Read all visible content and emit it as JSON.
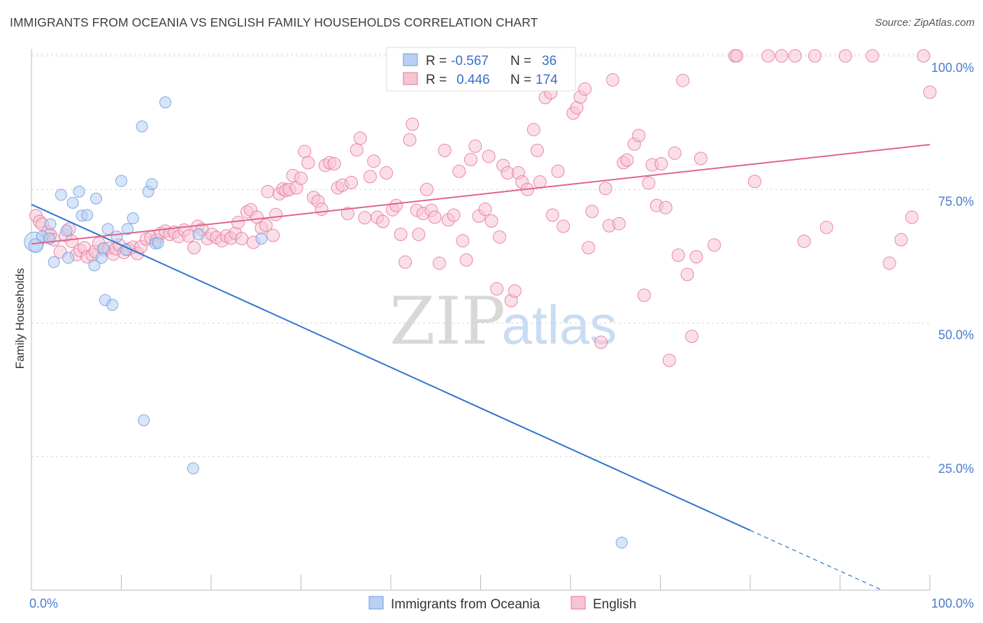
{
  "chart_data": {
    "type": "scatter",
    "title": "IMMIGRANTS FROM OCEANIA VS ENGLISH FAMILY HOUSEHOLDS CORRELATION CHART",
    "source": "Source: ZipAtlas.com",
    "xlabel": "",
    "ylabel": "Family Households",
    "xlim": [
      0,
      100
    ],
    "ylim": [
      0,
      102
    ],
    "x_tick_labels": [
      "0.0%",
      "100.0%"
    ],
    "y_ticks": [
      25,
      50,
      75,
      100
    ],
    "y_tick_labels": [
      "25.0%",
      "50.0%",
      "75.0%",
      "100.0%"
    ],
    "watermark": "ZIPatlas",
    "legend": {
      "r_label": "R =",
      "n_label": "N =",
      "entries": [
        {
          "r": "-0.567",
          "n": "36"
        },
        {
          "r": "0.446",
          "n": "174"
        }
      ]
    },
    "series": [
      {
        "name": "Immigrants from Oceania",
        "color": "#6a9de0",
        "fill": "#b8d0f3",
        "trend": {
          "x0": 0,
          "y0": 72.2,
          "x1": 80,
          "y1": 11.2,
          "dash_to_x": 94.5
        },
        "points": [
          [
            0.3,
            65.2,
            14
          ],
          [
            0.5,
            64.5,
            10
          ],
          [
            1.2,
            66.2,
            8
          ],
          [
            2.1,
            68.5,
            8
          ],
          [
            2.5,
            61.4,
            8
          ],
          [
            3.3,
            74.0,
            8
          ],
          [
            3.9,
            67.3,
            8
          ],
          [
            4.1,
            62.2,
            8
          ],
          [
            4.6,
            72.5,
            8
          ],
          [
            5.3,
            74.6,
            8
          ],
          [
            5.6,
            70.1,
            8
          ],
          [
            6.2,
            70.2,
            8
          ],
          [
            7.0,
            60.8,
            8
          ],
          [
            7.2,
            73.3,
            8
          ],
          [
            7.8,
            62.2,
            8
          ],
          [
            8.2,
            54.3,
            8
          ],
          [
            8.5,
            67.6,
            8
          ],
          [
            9.0,
            53.4,
            8
          ],
          [
            9.5,
            66.2,
            8
          ],
          [
            10.0,
            76.6,
            8
          ],
          [
            10.5,
            63.7,
            8
          ],
          [
            10.7,
            67.6,
            8
          ],
          [
            11.3,
            69.6,
            8
          ],
          [
            12.3,
            86.8,
            8
          ],
          [
            12.5,
            31.8,
            8
          ],
          [
            13.0,
            74.6,
            8
          ],
          [
            13.4,
            76.0,
            8
          ],
          [
            13.8,
            64.9,
            8
          ],
          [
            14.1,
            65.0,
            8
          ],
          [
            14.9,
            91.3,
            8
          ],
          [
            18.0,
            22.8,
            8
          ],
          [
            18.6,
            66.6,
            8
          ],
          [
            25.6,
            65.8,
            8
          ],
          [
            65.7,
            8.9,
            8
          ],
          [
            2.0,
            65.8,
            8
          ],
          [
            8.0,
            64.0,
            8
          ]
        ]
      },
      {
        "name": "English",
        "color": "#e5749c",
        "fill": "#f7c4d4",
        "trend": {
          "x0": 0,
          "y0": 64.8,
          "x1": 100,
          "y1": 83.4
        },
        "points": [
          [
            0.5,
            70.1,
            9
          ],
          [
            0.9,
            69.0,
            9
          ],
          [
            1.2,
            68.5,
            9
          ],
          [
            1.8,
            67.0,
            9
          ],
          [
            2.1,
            66.5,
            9
          ],
          [
            2.5,
            65.6,
            9
          ],
          [
            3.2,
            63.3,
            9
          ],
          [
            3.8,
            66.4,
            9
          ],
          [
            4.2,
            67.6,
            9
          ],
          [
            4.5,
            65.3,
            9
          ],
          [
            5.0,
            62.8,
            9
          ],
          [
            5.4,
            63.6,
            9
          ],
          [
            5.9,
            64.1,
            9
          ],
          [
            6.2,
            62.4,
            9
          ],
          [
            6.8,
            62.7,
            9
          ],
          [
            7.1,
            63.4,
            9
          ],
          [
            7.5,
            64.9,
            9
          ],
          [
            8.1,
            63.7,
            9
          ],
          [
            8.6,
            64.0,
            9
          ],
          [
            9.1,
            62.9,
            9
          ],
          [
            9.4,
            63.9,
            9
          ],
          [
            9.8,
            64.6,
            9
          ],
          [
            10.3,
            63.2,
            9
          ],
          [
            10.8,
            63.8,
            9
          ],
          [
            11.3,
            64.2,
            9
          ],
          [
            11.8,
            63.0,
            9
          ],
          [
            12.2,
            64.3,
            9
          ],
          [
            12.8,
            65.7,
            9
          ],
          [
            13.3,
            66.0,
            9
          ],
          [
            13.9,
            65.5,
            9
          ],
          [
            14.4,
            66.8,
            9
          ],
          [
            14.9,
            67.2,
            9
          ],
          [
            15.4,
            66.6,
            9
          ],
          [
            15.9,
            67.0,
            9
          ],
          [
            16.4,
            66.2,
            9
          ],
          [
            17.0,
            67.4,
            9
          ],
          [
            17.5,
            66.3,
            9
          ],
          [
            18.1,
            64.1,
            9
          ],
          [
            18.5,
            68.1,
            9
          ],
          [
            19.0,
            67.5,
            9
          ],
          [
            19.6,
            65.8,
            9
          ],
          [
            20.1,
            66.6,
            9
          ],
          [
            20.6,
            66.0,
            9
          ],
          [
            21.2,
            65.4,
            9
          ],
          [
            21.7,
            66.3,
            9
          ],
          [
            22.2,
            65.9,
            9
          ],
          [
            22.7,
            66.8,
            9
          ],
          [
            23.0,
            68.8,
            9
          ],
          [
            23.4,
            65.8,
            9
          ],
          [
            24.0,
            70.8,
            9
          ],
          [
            24.4,
            71.2,
            9
          ],
          [
            24.7,
            65.1,
            9
          ],
          [
            25.1,
            69.8,
            9
          ],
          [
            25.6,
            67.8,
            9
          ],
          [
            26.1,
            68.3,
            9
          ],
          [
            26.3,
            74.6,
            9
          ],
          [
            26.9,
            66.4,
            9
          ],
          [
            27.2,
            70.3,
            9
          ],
          [
            27.6,
            74.2,
            9
          ],
          [
            28.0,
            75.1,
            9
          ],
          [
            28.3,
            74.8,
            9
          ],
          [
            28.7,
            75.0,
            9
          ],
          [
            29.1,
            77.6,
            9
          ],
          [
            29.5,
            75.3,
            9
          ],
          [
            30.0,
            77.1,
            9
          ],
          [
            30.4,
            82.1,
            9
          ],
          [
            30.8,
            80.0,
            9
          ],
          [
            31.4,
            73.5,
            9
          ],
          [
            31.9,
            72.8,
            9
          ],
          [
            32.3,
            71.3,
            9
          ],
          [
            32.7,
            79.5,
            9
          ],
          [
            33.2,
            80.0,
            9
          ],
          [
            33.7,
            79.8,
            9
          ],
          [
            34.1,
            75.3,
            9
          ],
          [
            34.6,
            75.8,
            9
          ],
          [
            35.2,
            70.5,
            9
          ],
          [
            35.6,
            76.3,
            9
          ],
          [
            36.2,
            82.4,
            9
          ],
          [
            36.6,
            84.6,
            9
          ],
          [
            37.1,
            69.7,
            9
          ],
          [
            37.7,
            77.4,
            9
          ],
          [
            38.1,
            80.3,
            9
          ],
          [
            38.5,
            69.8,
            9
          ],
          [
            39.1,
            69.0,
            9
          ],
          [
            39.5,
            78.1,
            9
          ],
          [
            40.2,
            71.2,
            9
          ],
          [
            40.6,
            72.0,
            9
          ],
          [
            41.1,
            66.6,
            9
          ],
          [
            41.6,
            61.4,
            9
          ],
          [
            42.1,
            84.3,
            9
          ],
          [
            42.4,
            87.2,
            9
          ],
          [
            42.9,
            71.1,
            9
          ],
          [
            43.1,
            66.6,
            9
          ],
          [
            43.6,
            70.5,
            9
          ],
          [
            44.0,
            75.0,
            9
          ],
          [
            44.5,
            71.1,
            9
          ],
          [
            44.9,
            69.8,
            9
          ],
          [
            45.4,
            61.2,
            9
          ],
          [
            46.0,
            82.3,
            9
          ],
          [
            46.4,
            69.3,
            9
          ],
          [
            47.0,
            70.2,
            9
          ],
          [
            47.6,
            78.4,
            9
          ],
          [
            48.0,
            65.4,
            9
          ],
          [
            48.4,
            61.8,
            9
          ],
          [
            48.9,
            80.6,
            9
          ],
          [
            49.4,
            83.1,
            9
          ],
          [
            49.8,
            70.0,
            9
          ],
          [
            50.5,
            71.3,
            9
          ],
          [
            50.9,
            81.2,
            9
          ],
          [
            51.2,
            69.1,
            9
          ],
          [
            51.8,
            56.4,
            9
          ],
          [
            52.1,
            66.1,
            9
          ],
          [
            52.5,
            79.5,
            9
          ],
          [
            53.0,
            78.1,
            9
          ],
          [
            53.4,
            54.2,
            9
          ],
          [
            53.8,
            56.0,
            9
          ],
          [
            54.2,
            78.1,
            9
          ],
          [
            54.6,
            76.4,
            9
          ],
          [
            55.2,
            75.0,
            9
          ],
          [
            55.9,
            86.2,
            9
          ],
          [
            56.3,
            82.3,
            9
          ],
          [
            56.6,
            76.4,
            9
          ],
          [
            57.2,
            92.2,
            9
          ],
          [
            57.8,
            93.1,
            9
          ],
          [
            58.0,
            70.2,
            9
          ],
          [
            58.6,
            78.4,
            9
          ],
          [
            59.2,
            68.1,
            9
          ],
          [
            59.7,
            94.9,
            9
          ],
          [
            60.3,
            89.3,
            9
          ],
          [
            60.7,
            90.3,
            9
          ],
          [
            61.1,
            92.3,
            9
          ],
          [
            61.6,
            93.8,
            9
          ],
          [
            62.0,
            64.1,
            9
          ],
          [
            62.4,
            70.9,
            9
          ],
          [
            63.4,
            46.4,
            9
          ],
          [
            63.9,
            75.2,
            9
          ],
          [
            64.3,
            68.2,
            9
          ],
          [
            64.7,
            95.5,
            9
          ],
          [
            65.4,
            68.6,
            9
          ],
          [
            65.9,
            80.0,
            9
          ],
          [
            66.3,
            80.5,
            9
          ],
          [
            67.1,
            83.5,
            9
          ],
          [
            67.6,
            85.1,
            9
          ],
          [
            68.2,
            55.2,
            9
          ],
          [
            68.7,
            76.2,
            9
          ],
          [
            69.1,
            79.6,
            9
          ],
          [
            69.6,
            72.0,
            9
          ],
          [
            70.1,
            79.8,
            9
          ],
          [
            70.6,
            71.6,
            9
          ],
          [
            71.0,
            43.0,
            9
          ],
          [
            71.6,
            81.8,
            9
          ],
          [
            72.0,
            62.7,
            9
          ],
          [
            72.5,
            95.4,
            9
          ],
          [
            73.0,
            59.1,
            9
          ],
          [
            73.5,
            47.5,
            9
          ],
          [
            74.0,
            62.4,
            9
          ],
          [
            74.5,
            80.8,
            9
          ],
          [
            76.0,
            64.6,
            9
          ],
          [
            78.3,
            100.0,
            9
          ],
          [
            80.5,
            76.5,
            9
          ],
          [
            82.0,
            100.0,
            9
          ],
          [
            83.5,
            100.0,
            9
          ],
          [
            85.0,
            100.0,
            9
          ],
          [
            86.0,
            65.3,
            9
          ],
          [
            87.2,
            100.0,
            9
          ],
          [
            88.5,
            67.9,
            9
          ],
          [
            90.6,
            100.0,
            9
          ],
          [
            93.6,
            100.0,
            9
          ],
          [
            95.5,
            61.2,
            9
          ],
          [
            96.8,
            65.6,
            9
          ],
          [
            98.0,
            69.8,
            9
          ],
          [
            99.3,
            100.0,
            9
          ],
          [
            100.0,
            93.2,
            9
          ],
          [
            78.5,
            100.0,
            9
          ]
        ]
      }
    ]
  }
}
